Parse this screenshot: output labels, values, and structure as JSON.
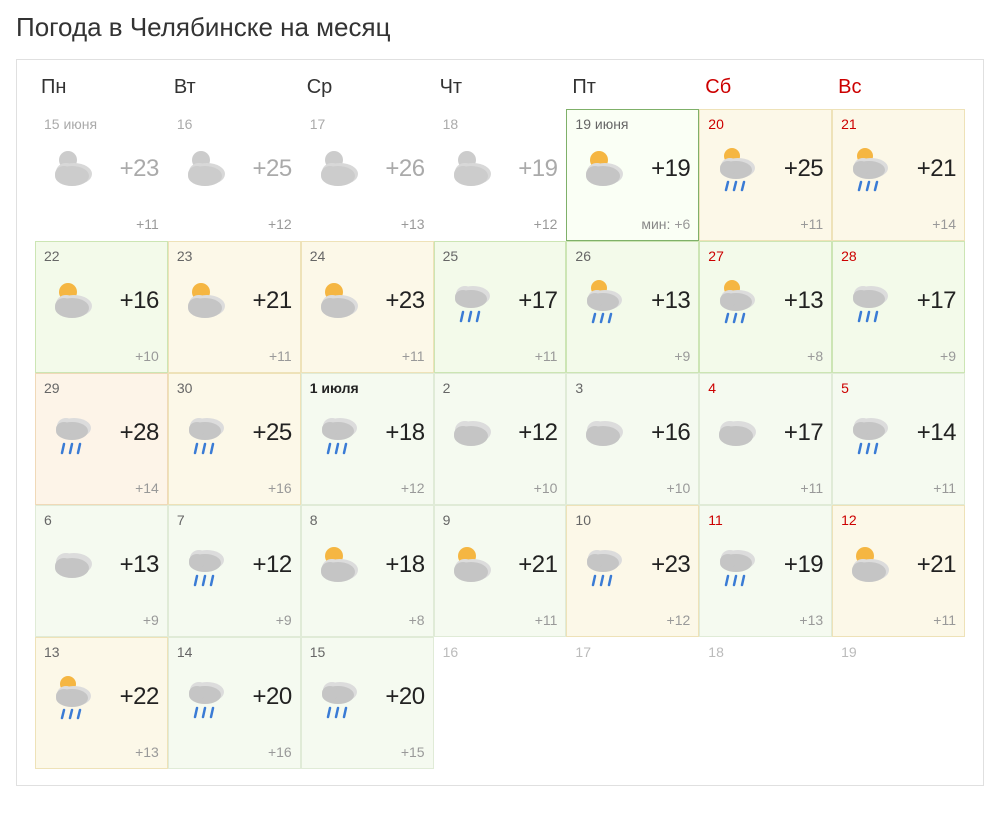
{
  "title": "Погода в Челябинске на месяц",
  "dayHeaders": [
    {
      "label": "Пн",
      "weekend": false
    },
    {
      "label": "Вт",
      "weekend": false
    },
    {
      "label": "Ср",
      "weekend": false
    },
    {
      "label": "Чт",
      "weekend": false
    },
    {
      "label": "Пт",
      "weekend": false
    },
    {
      "label": "Сб",
      "weekend": true
    },
    {
      "label": "Вс",
      "weekend": true
    }
  ],
  "days": [
    {
      "date": "15 июня",
      "past": true,
      "icon": "partly-cloudy-gray",
      "high": "+23",
      "low": "+11"
    },
    {
      "date": "16",
      "past": true,
      "icon": "partly-cloudy-gray",
      "high": "+25",
      "low": "+12"
    },
    {
      "date": "17",
      "past": true,
      "icon": "partly-cloudy-gray",
      "high": "+26",
      "low": "+13"
    },
    {
      "date": "18",
      "past": true,
      "icon": "partly-cloudy-gray",
      "high": "+19",
      "low": "+12"
    },
    {
      "date": "19 июня",
      "today": true,
      "icon": "partly-cloudy",
      "high": "+19",
      "lowPrefix": "мин:",
      "low": "+6"
    },
    {
      "date": "20",
      "weekend": true,
      "bg": "yellow",
      "icon": "partly-cloudy-rain",
      "high": "+25",
      "low": "+11"
    },
    {
      "date": "21",
      "weekend": true,
      "bg": "yellow",
      "icon": "partly-cloudy-rain",
      "high": "+21",
      "low": "+14"
    },
    {
      "date": "22",
      "bg": "green",
      "icon": "partly-cloudy",
      "high": "+16",
      "low": "+10"
    },
    {
      "date": "23",
      "bg": "yellow",
      "icon": "partly-cloudy",
      "high": "+21",
      "low": "+11"
    },
    {
      "date": "24",
      "bg": "yellow",
      "icon": "partly-cloudy",
      "high": "+23",
      "low": "+11"
    },
    {
      "date": "25",
      "bg": "green",
      "icon": "cloud-rain",
      "high": "+17",
      "low": "+11"
    },
    {
      "date": "26",
      "bg": "green",
      "icon": "partly-cloudy-rain",
      "high": "+13",
      "low": "+9"
    },
    {
      "date": "27",
      "weekend": true,
      "bg": "green",
      "icon": "partly-cloudy-rain",
      "high": "+13",
      "low": "+8"
    },
    {
      "date": "28",
      "weekend": true,
      "bg": "green",
      "icon": "cloud-rain",
      "high": "+17",
      "low": "+9"
    },
    {
      "date": "29",
      "bg": "orange",
      "icon": "cloud-rain",
      "high": "+28",
      "low": "+14"
    },
    {
      "date": "30",
      "bg": "yellow",
      "icon": "cloud-rain",
      "high": "+25",
      "low": "+16"
    },
    {
      "date": "1 июля",
      "bold": true,
      "bg": "green-light",
      "icon": "cloud-rain",
      "high": "+18",
      "low": "+12"
    },
    {
      "date": "2",
      "bg": "green-light",
      "icon": "cloud",
      "high": "+12",
      "low": "+10"
    },
    {
      "date": "3",
      "bg": "green-light",
      "icon": "cloud",
      "high": "+16",
      "low": "+10"
    },
    {
      "date": "4",
      "weekend": true,
      "bg": "green-light",
      "icon": "cloud",
      "high": "+17",
      "low": "+11"
    },
    {
      "date": "5",
      "weekend": true,
      "bg": "green-light",
      "icon": "cloud-rain",
      "high": "+14",
      "low": "+11"
    },
    {
      "date": "6",
      "bg": "green-light",
      "icon": "cloud",
      "high": "+13",
      "low": "+9"
    },
    {
      "date": "7",
      "bg": "green-light",
      "icon": "cloud-rain",
      "high": "+12",
      "low": "+9"
    },
    {
      "date": "8",
      "bg": "green-light",
      "icon": "partly-cloudy",
      "high": "+18",
      "low": "+8"
    },
    {
      "date": "9",
      "bg": "green-light",
      "icon": "partly-cloudy",
      "high": "+21",
      "low": "+11"
    },
    {
      "date": "10",
      "bg": "yellow",
      "icon": "cloud-rain",
      "high": "+23",
      "low": "+12"
    },
    {
      "date": "11",
      "weekend": true,
      "bg": "green-light",
      "icon": "cloud-rain",
      "high": "+19",
      "low": "+13"
    },
    {
      "date": "12",
      "weekend": true,
      "bg": "yellow",
      "icon": "partly-cloudy",
      "high": "+21",
      "low": "+11"
    },
    {
      "date": "13",
      "bg": "yellow",
      "icon": "partly-cloudy-rain",
      "high": "+22",
      "low": "+13"
    },
    {
      "date": "14",
      "bg": "green-light",
      "icon": "cloud-rain",
      "high": "+20",
      "low": "+16"
    },
    {
      "date": "15",
      "bg": "green-light",
      "icon": "cloud-rain",
      "high": "+20",
      "low": "+15"
    },
    {
      "date": "16",
      "empty": true
    },
    {
      "date": "17",
      "empty": true
    },
    {
      "date": "18",
      "empty": true
    },
    {
      "date": "19",
      "empty": true
    }
  ],
  "iconColors": {
    "sun": "#f5b642",
    "cloud": "#c5c5c5",
    "cloudLight": "#dcdcdc",
    "cloudGray": "#bfbfbf",
    "rain": "#3a7bd5"
  }
}
